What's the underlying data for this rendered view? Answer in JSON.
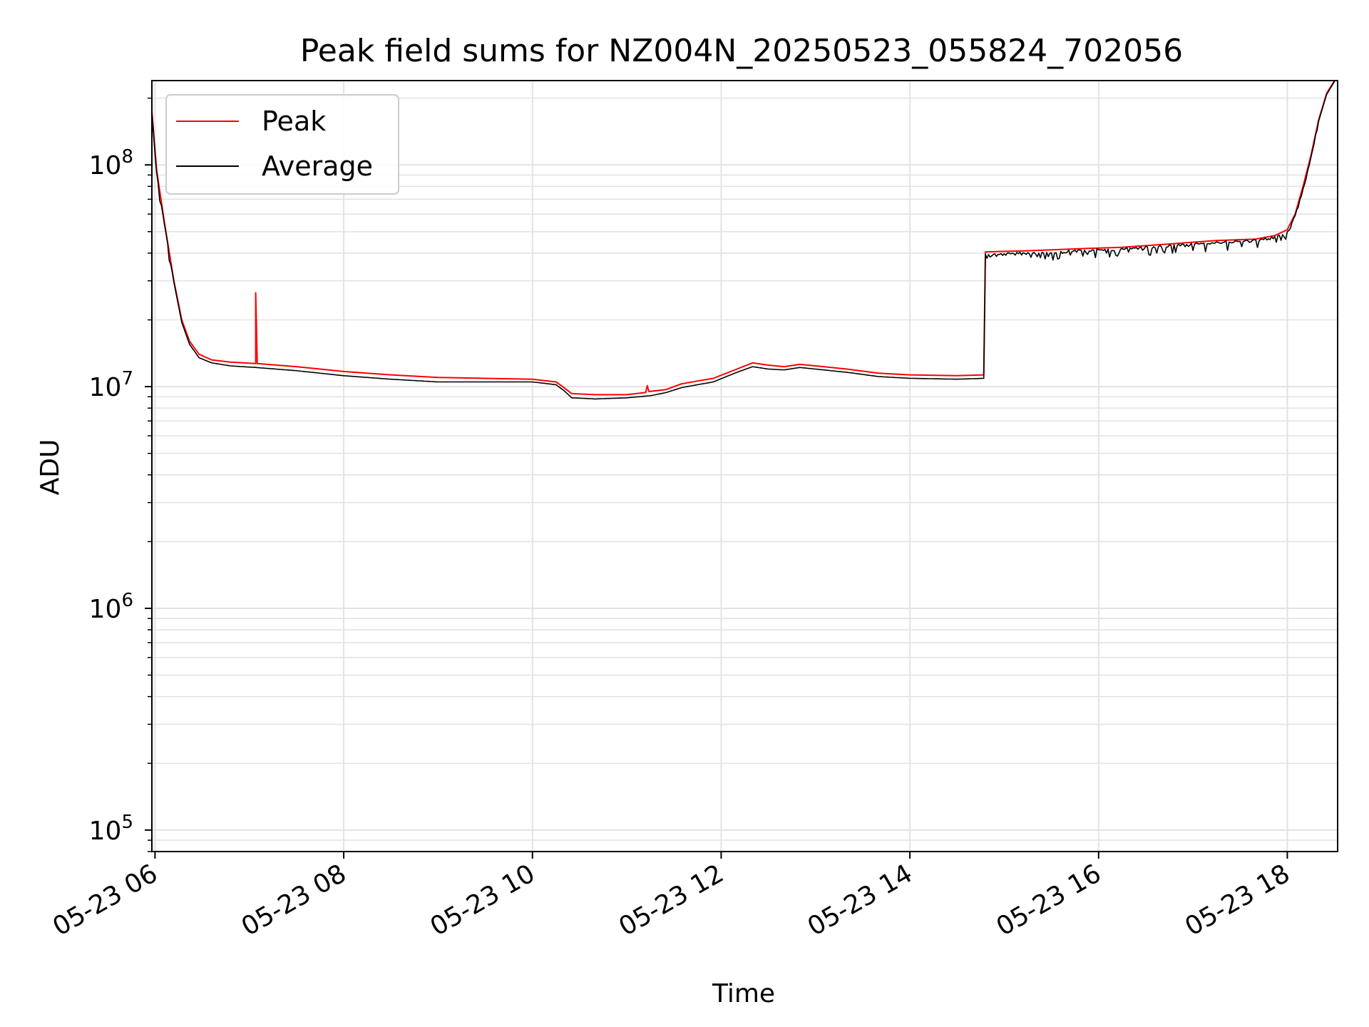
{
  "chart_data": {
    "type": "line",
    "title": "Peak field sums for NZ004N_20250523_055824_702056",
    "xlabel": "Time",
    "ylabel": "ADU",
    "yscale": "log",
    "ylim": [
      80000,
      240000000
    ],
    "xlim": [
      "05-23 05:58",
      "05-23 18:32"
    ],
    "grid": true,
    "legend_position": "upper left",
    "x_ticks": [
      {
        "t": "05-23 06:00",
        "label": "05-23 06"
      },
      {
        "t": "05-23 08:00",
        "label": "05-23 08"
      },
      {
        "t": "05-23 10:00",
        "label": "05-23 10"
      },
      {
        "t": "05-23 12:00",
        "label": "05-23 12"
      },
      {
        "t": "05-23 14:00",
        "label": "05-23 14"
      },
      {
        "t": "05-23 16:00",
        "label": "05-23 16"
      },
      {
        "t": "05-23 18:00",
        "label": "05-23 18"
      }
    ],
    "y_ticks": [
      {
        "value": 100000,
        "base": "10",
        "exp": "5"
      },
      {
        "value": 1000000,
        "base": "10",
        "exp": "6"
      },
      {
        "value": 10000000,
        "base": "10",
        "exp": "7"
      },
      {
        "value": 100000000,
        "base": "10",
        "exp": "8"
      }
    ],
    "series": [
      {
        "name": "Peak",
        "color": "#ff0000",
        "points": [
          [
            "05-23 05:58",
            175000000
          ],
          [
            "05-23 06:01",
            95000000
          ],
          [
            "05-23 06:06",
            55000000
          ],
          [
            "05-23 06:12",
            30000000
          ],
          [
            "05-23 06:17",
            20000000
          ],
          [
            "05-23 06:22",
            16000000
          ],
          [
            "05-23 06:28",
            14000000
          ],
          [
            "05-23 06:36",
            13200000
          ],
          [
            "05-23 06:48",
            12900000
          ],
          [
            "05-23 07:04",
            12700000
          ],
          [
            "05-23 07:04",
            26500000
          ],
          [
            "05-23 07:05",
            12700000
          ],
          [
            "05-23 07:30",
            12300000
          ],
          [
            "05-23 08:00",
            11700000
          ],
          [
            "05-23 08:30",
            11300000
          ],
          [
            "05-23 09:00",
            11000000
          ],
          [
            "05-23 09:30",
            10900000
          ],
          [
            "05-23 10:00",
            10800000
          ],
          [
            "05-23 10:15",
            10500000
          ],
          [
            "05-23 10:20",
            9900000
          ],
          [
            "05-23 10:25",
            9300000
          ],
          [
            "05-23 10:40",
            9200000
          ],
          [
            "05-23 11:00",
            9200000
          ],
          [
            "05-23 11:12",
            9400000
          ],
          [
            "05-23 11:13",
            10100000
          ],
          [
            "05-23 11:14",
            9500000
          ],
          [
            "05-23 11:25",
            9700000
          ],
          [
            "05-23 11:35",
            10300000
          ],
          [
            "05-23 11:45",
            10600000
          ],
          [
            "05-23 11:55",
            10900000
          ],
          [
            "05-23 12:10",
            12000000
          ],
          [
            "05-23 12:20",
            12800000
          ],
          [
            "05-23 12:30",
            12500000
          ],
          [
            "05-23 12:40",
            12300000
          ],
          [
            "05-23 12:50",
            12600000
          ],
          [
            "05-23 13:00",
            12400000
          ],
          [
            "05-23 13:20",
            12000000
          ],
          [
            "05-23 13:40",
            11500000
          ],
          [
            "05-23 14:00",
            11300000
          ],
          [
            "05-23 14:30",
            11200000
          ],
          [
            "05-23 14:47",
            11300000
          ],
          [
            "05-23 14:48",
            40500000
          ],
          [
            "05-23 15:15",
            41000000
          ],
          [
            "05-23 15:45",
            41800000
          ],
          [
            "05-23 16:15",
            42500000
          ],
          [
            "05-23 16:45",
            44000000
          ],
          [
            "05-23 17:15",
            45600000
          ],
          [
            "05-23 17:40",
            46300000
          ],
          [
            "05-23 17:52",
            48000000
          ],
          [
            "05-23 18:00",
            51000000
          ],
          [
            "05-23 18:05",
            60000000
          ],
          [
            "05-23 18:10",
            80000000
          ],
          [
            "05-23 18:15",
            110000000
          ],
          [
            "05-23 18:20",
            160000000
          ],
          [
            "05-23 18:25",
            210000000
          ],
          [
            "05-23 18:30",
            240000000
          ]
        ]
      },
      {
        "name": "Average",
        "color": "#000000",
        "points": [
          [
            "05-23 05:58",
            172000000
          ],
          [
            "05-23 06:01",
            93000000
          ],
          [
            "05-23 06:06",
            54000000
          ],
          [
            "05-23 06:12",
            29500000
          ],
          [
            "05-23 06:17",
            19500000
          ],
          [
            "05-23 06:22",
            15500000
          ],
          [
            "05-23 06:28",
            13500000
          ],
          [
            "05-23 06:36",
            12800000
          ],
          [
            "05-23 06:48",
            12400000
          ],
          [
            "05-23 07:04",
            12200000
          ],
          [
            "05-23 07:30",
            11800000
          ],
          [
            "05-23 08:00",
            11200000
          ],
          [
            "05-23 08:30",
            10800000
          ],
          [
            "05-23 09:00",
            10500000
          ],
          [
            "05-23 09:30",
            10500000
          ],
          [
            "05-23 10:00",
            10500000
          ],
          [
            "05-23 10:15",
            10200000
          ],
          [
            "05-23 10:20",
            9600000
          ],
          [
            "05-23 10:25",
            8900000
          ],
          [
            "05-23 10:40",
            8800000
          ],
          [
            "05-23 11:00",
            8900000
          ],
          [
            "05-23 11:15",
            9100000
          ],
          [
            "05-23 11:25",
            9400000
          ],
          [
            "05-23 11:35",
            9900000
          ],
          [
            "05-23 11:45",
            10200000
          ],
          [
            "05-23 11:55",
            10500000
          ],
          [
            "05-23 12:10",
            11600000
          ],
          [
            "05-23 12:20",
            12300000
          ],
          [
            "05-23 12:30",
            12000000
          ],
          [
            "05-23 12:40",
            11900000
          ],
          [
            "05-23 12:50",
            12200000
          ],
          [
            "05-23 13:00",
            12000000
          ],
          [
            "05-23 13:20",
            11600000
          ],
          [
            "05-23 13:40",
            11100000
          ],
          [
            "05-23 14:00",
            10900000
          ],
          [
            "05-23 14:30",
            10800000
          ],
          [
            "05-23 14:47",
            10900000
          ],
          [
            "05-23 14:48",
            39500000
          ],
          [
            "05-23 15:15",
            40200000
          ],
          [
            "05-23 15:45",
            41200000
          ],
          [
            "05-23 16:15",
            42000000
          ],
          [
            "05-23 16:45",
            43500000
          ],
          [
            "05-23 17:15",
            45000000
          ],
          [
            "05-23 17:40",
            45800000
          ],
          [
            "05-23 17:52",
            47500000
          ],
          [
            "05-23 18:00",
            50000000
          ],
          [
            "05-23 18:05",
            59000000
          ],
          [
            "05-23 18:10",
            78000000
          ],
          [
            "05-23 18:15",
            108000000
          ],
          [
            "05-23 18:20",
            158000000
          ],
          [
            "05-23 18:25",
            208000000
          ],
          [
            "05-23 18:30",
            238000000
          ]
        ]
      }
    ]
  }
}
